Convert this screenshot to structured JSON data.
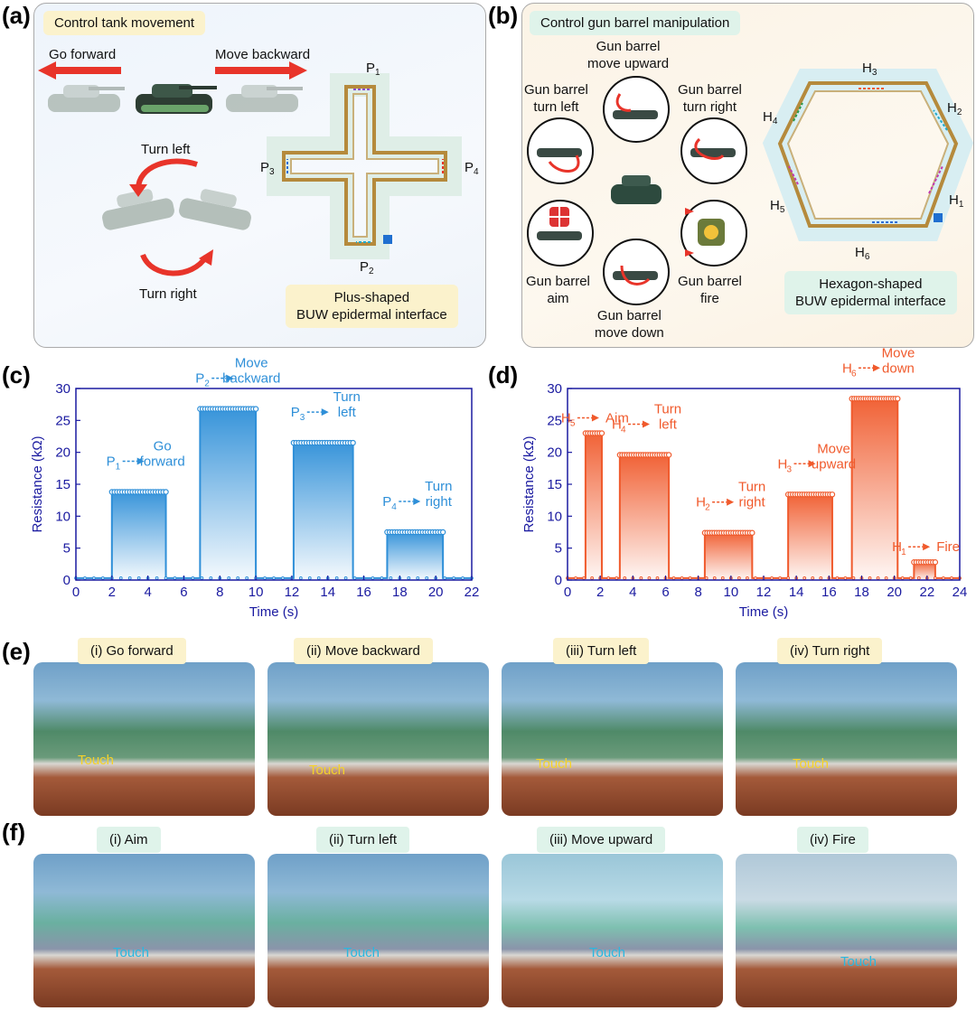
{
  "panel_letters": {
    "a": "(a)",
    "b": "(b)",
    "c": "(c)",
    "d": "(d)",
    "e": "(e)",
    "f": "(f)"
  },
  "panel_a": {
    "title": "Control tank movement",
    "go_forward": "Go forward",
    "move_backward": "Move backward",
    "turn_left": "Turn left",
    "turn_right": "Turn right",
    "interface_line1": "Plus-shaped",
    "interface_line2": "BUW epidermal interface",
    "points": [
      "P1",
      "P2",
      "P3",
      "P4"
    ]
  },
  "panel_b": {
    "title": "Control gun barrel manipulation",
    "move_upward": "Gun barrel\nmove upward",
    "turn_left": "Gun barrel\nturn left",
    "turn_right": "Gun barrel\nturn right",
    "aim": "Gun barrel\naim",
    "fire": "Gun barrel\nfire",
    "move_down": "Gun barrel\nmove down",
    "interface_line1": "Hexagon-shaped",
    "interface_line2": "BUW epidermal interface",
    "points": [
      "H1",
      "H2",
      "H3",
      "H4",
      "H5",
      "H6"
    ]
  },
  "chart_data": [
    {
      "type": "area",
      "xlabel": "Time (s)",
      "ylabel": "Resistance (kΩ)",
      "xlim": [
        0,
        22
      ],
      "ylim": [
        0,
        30
      ],
      "xticks": [
        0,
        2,
        4,
        6,
        8,
        10,
        12,
        14,
        16,
        18,
        20,
        22
      ],
      "yticks": [
        0,
        5,
        10,
        15,
        20,
        25,
        30
      ],
      "color": "#2e8fd8",
      "baseline": 0.3,
      "pulses": [
        {
          "start": 2.0,
          "end": 5.0,
          "value": 13.8,
          "point": "P",
          "sub": "1",
          "label": [
            "Go",
            "forward"
          ]
        },
        {
          "start": 6.9,
          "end": 10.0,
          "value": 26.8,
          "point": "P",
          "sub": "2",
          "label": [
            "Move",
            "backward"
          ]
        },
        {
          "start": 12.1,
          "end": 15.4,
          "value": 21.5,
          "point": "P",
          "sub": "3",
          "label": [
            "Turn",
            "left"
          ]
        },
        {
          "start": 17.3,
          "end": 20.4,
          "value": 7.5,
          "point": "P",
          "sub": "4",
          "label": [
            "Turn",
            "right"
          ]
        }
      ]
    },
    {
      "type": "area",
      "xlabel": "Time (s)",
      "ylabel": "Resistance (kΩ)",
      "xlim": [
        0,
        24
      ],
      "ylim": [
        0,
        30
      ],
      "xticks": [
        0,
        2,
        4,
        6,
        8,
        10,
        12,
        14,
        16,
        18,
        20,
        22,
        24
      ],
      "yticks": [
        0,
        5,
        10,
        15,
        20,
        25,
        30
      ],
      "color": "#f05a2c",
      "baseline": 0.3,
      "pulses": [
        {
          "start": 1.1,
          "end": 2.1,
          "value": 23.0,
          "point": "H",
          "sub": "5",
          "label": [
            "Aim"
          ]
        },
        {
          "start": 3.2,
          "end": 6.2,
          "value": 19.6,
          "point": "H",
          "sub": "4",
          "label": [
            "Turn",
            "left"
          ]
        },
        {
          "start": 8.4,
          "end": 11.3,
          "value": 7.4,
          "point": "H",
          "sub": "2",
          "label": [
            "Turn",
            "right"
          ]
        },
        {
          "start": 13.5,
          "end": 16.2,
          "value": 13.4,
          "point": "H",
          "sub": "3",
          "label": [
            "Move",
            "upward"
          ]
        },
        {
          "start": 17.4,
          "end": 20.2,
          "value": 28.4,
          "point": "H",
          "sub": "6",
          "label": [
            "Move",
            "down"
          ]
        },
        {
          "start": 21.2,
          "end": 22.5,
          "value": 2.8,
          "point": "H",
          "sub": "1",
          "label": [
            "Fire"
          ]
        }
      ]
    }
  ],
  "panel_e": {
    "captions": [
      "(i)  Go forward",
      "(ii)  Move backward",
      "(iii)  Turn left",
      "(iv)  Turn right"
    ],
    "touch": "Touch"
  },
  "panel_f": {
    "captions": [
      "(i)  Aim",
      "(ii)  Turn left",
      "(iii)  Move upward",
      "(iv)  Fire"
    ],
    "touch": "Touch"
  }
}
